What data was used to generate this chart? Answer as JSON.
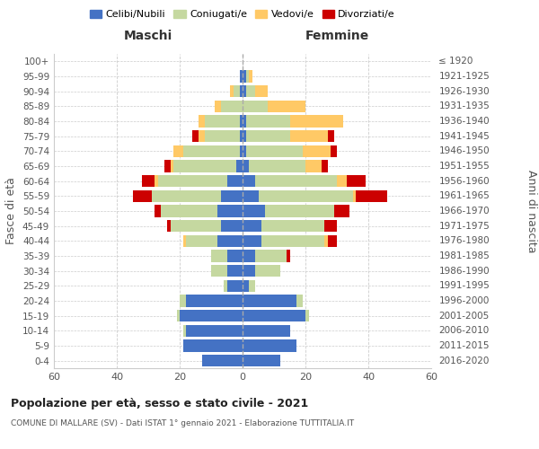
{
  "age_groups": [
    "0-4",
    "5-9",
    "10-14",
    "15-19",
    "20-24",
    "25-29",
    "30-34",
    "35-39",
    "40-44",
    "45-49",
    "50-54",
    "55-59",
    "60-64",
    "65-69",
    "70-74",
    "75-79",
    "80-84",
    "85-89",
    "90-94",
    "95-99",
    "100+"
  ],
  "birth_years": [
    "2016-2020",
    "2011-2015",
    "2006-2010",
    "2001-2005",
    "1996-2000",
    "1991-1995",
    "1986-1990",
    "1981-1985",
    "1976-1980",
    "1971-1975",
    "1966-1970",
    "1961-1965",
    "1956-1960",
    "1951-1955",
    "1946-1950",
    "1941-1945",
    "1936-1940",
    "1931-1935",
    "1926-1930",
    "1921-1925",
    "≤ 1920"
  ],
  "male": {
    "celibi": [
      13,
      19,
      18,
      20,
      18,
      5,
      5,
      5,
      8,
      7,
      8,
      7,
      5,
      2,
      1,
      1,
      1,
      0,
      1,
      1,
      0
    ],
    "coniugati": [
      0,
      0,
      1,
      1,
      2,
      1,
      5,
      5,
      10,
      16,
      18,
      22,
      22,
      20,
      18,
      11,
      11,
      7,
      2,
      0,
      0
    ],
    "vedovi": [
      0,
      0,
      0,
      0,
      0,
      0,
      0,
      0,
      1,
      0,
      0,
      0,
      1,
      1,
      3,
      2,
      2,
      2,
      1,
      0,
      0
    ],
    "divorziati": [
      0,
      0,
      0,
      0,
      0,
      0,
      0,
      0,
      0,
      1,
      2,
      6,
      4,
      2,
      0,
      2,
      0,
      0,
      0,
      0,
      0
    ]
  },
  "female": {
    "nubili": [
      12,
      17,
      15,
      20,
      17,
      2,
      4,
      4,
      6,
      6,
      7,
      5,
      4,
      2,
      1,
      1,
      1,
      0,
      1,
      1,
      0
    ],
    "coniugate": [
      0,
      0,
      0,
      1,
      2,
      2,
      8,
      10,
      20,
      20,
      22,
      30,
      26,
      18,
      18,
      14,
      14,
      8,
      3,
      1,
      0
    ],
    "vedove": [
      0,
      0,
      0,
      0,
      0,
      0,
      0,
      0,
      1,
      0,
      0,
      1,
      3,
      5,
      9,
      12,
      17,
      12,
      4,
      1,
      0
    ],
    "divorziate": [
      0,
      0,
      0,
      0,
      0,
      0,
      0,
      1,
      3,
      4,
      5,
      10,
      6,
      2,
      2,
      2,
      0,
      0,
      0,
      0,
      0
    ]
  },
  "colors": {
    "celibi_nubili": "#4472c4",
    "coniugati": "#c5d8a0",
    "vedovi": "#ffc966",
    "divorziati": "#cc0000"
  },
  "title1": "Popolazione per età, sesso e stato civile - 2021",
  "title2": "COMUNE DI MALLARE (SV) - Dati ISTAT 1° gennaio 2021 - Elaborazione TUTTITALIA.IT",
  "xlabel_left": "Maschi",
  "xlabel_right": "Femmine",
  "ylabel_left": "Fasce di età",
  "ylabel_right": "Anni di nascita",
  "xlim": 60,
  "legend_labels": [
    "Celibi/Nubili",
    "Coniugati/e",
    "Vedovi/e",
    "Divorziati/e"
  ],
  "background_color": "#ffffff"
}
